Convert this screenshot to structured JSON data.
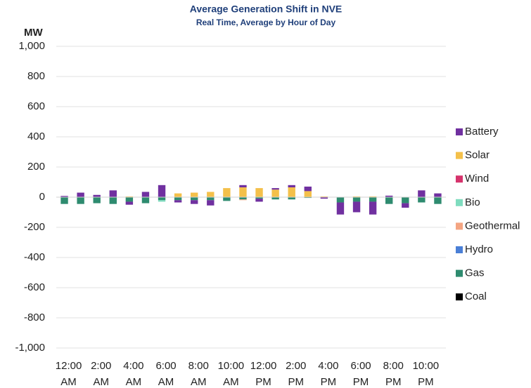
{
  "chart_data": {
    "type": "stacked_bar",
    "title": "Average Generation Shift in NVE",
    "subtitle": "Real Time, Average by Hour of Day",
    "y_label": "MW",
    "categories": [
      "12:00 AM",
      null,
      "2:00 AM",
      null,
      "4:00 AM",
      null,
      "6:00 AM",
      null,
      "8:00 AM",
      null,
      "10:00 AM",
      null,
      "12:00 PM",
      null,
      "2:00 PM",
      null,
      "4:00 PM",
      null,
      "6:00 PM",
      null,
      "8:00 PM",
      null,
      "10:00 PM",
      null
    ],
    "series": [
      {
        "name": "Coal",
        "color": "#000000",
        "values": [
          0,
          0,
          0,
          0,
          0,
          0,
          0,
          0,
          0,
          0,
          0,
          0,
          0,
          0,
          0,
          0,
          0,
          0,
          0,
          0,
          0,
          0,
          0,
          0
        ]
      },
      {
        "name": "Gas",
        "color": "#2e8b6f",
        "values": [
          -45,
          -45,
          -40,
          -45,
          -30,
          -40,
          -20,
          -20,
          -20,
          -20,
          -25,
          -15,
          -10,
          -15,
          -15,
          -5,
          0,
          -35,
          -30,
          -30,
          -45,
          -40,
          -35,
          -45
        ]
      },
      {
        "name": "Hydro",
        "color": "#4a7fd6",
        "values": [
          0,
          0,
          0,
          0,
          0,
          0,
          0,
          0,
          0,
          0,
          0,
          0,
          0,
          0,
          0,
          0,
          0,
          0,
          0,
          0,
          0,
          0,
          0,
          0
        ]
      },
      {
        "name": "Geothermal",
        "color": "#f4a582",
        "values": [
          0,
          0,
          0,
          0,
          0,
          0,
          0,
          0,
          0,
          0,
          0,
          -5,
          0,
          0,
          0,
          0,
          0,
          0,
          0,
          0,
          0,
          0,
          0,
          0
        ]
      },
      {
        "name": "Bio",
        "color": "#7fdcbf",
        "values": [
          0,
          0,
          0,
          0,
          0,
          0,
          -10,
          0,
          0,
          0,
          0,
          0,
          0,
          0,
          0,
          0,
          0,
          0,
          0,
          0,
          0,
          0,
          0,
          0
        ]
      },
      {
        "name": "Wind",
        "color": "#d6336c",
        "values": [
          0,
          0,
          0,
          0,
          0,
          0,
          0,
          0,
          0,
          0,
          0,
          0,
          0,
          0,
          0,
          0,
          0,
          0,
          0,
          0,
          0,
          0,
          0,
          0
        ]
      },
      {
        "name": "Solar",
        "color": "#f4c04a",
        "values": [
          0,
          0,
          0,
          0,
          5,
          0,
          0,
          25,
          30,
          35,
          60,
          65,
          60,
          50,
          65,
          40,
          5,
          0,
          5,
          5,
          0,
          0,
          0,
          0
        ]
      },
      {
        "name": "Battery",
        "color": "#7030a0",
        "values": [
          8,
          30,
          15,
          45,
          -20,
          35,
          80,
          -15,
          -25,
          -35,
          0,
          15,
          -20,
          10,
          15,
          30,
          -10,
          -80,
          -70,
          -85,
          10,
          -30,
          45,
          25
        ]
      }
    ],
    "ylim": [
      -1000,
      1000
    ],
    "yticks": [
      {
        "value": -1000,
        "label": "-1,000"
      },
      -800,
      -600,
      -400,
      -200,
      0,
      200,
      400,
      600,
      800,
      {
        "value": 1000,
        "label": "1,000"
      }
    ],
    "grid": true,
    "legend": "right"
  }
}
